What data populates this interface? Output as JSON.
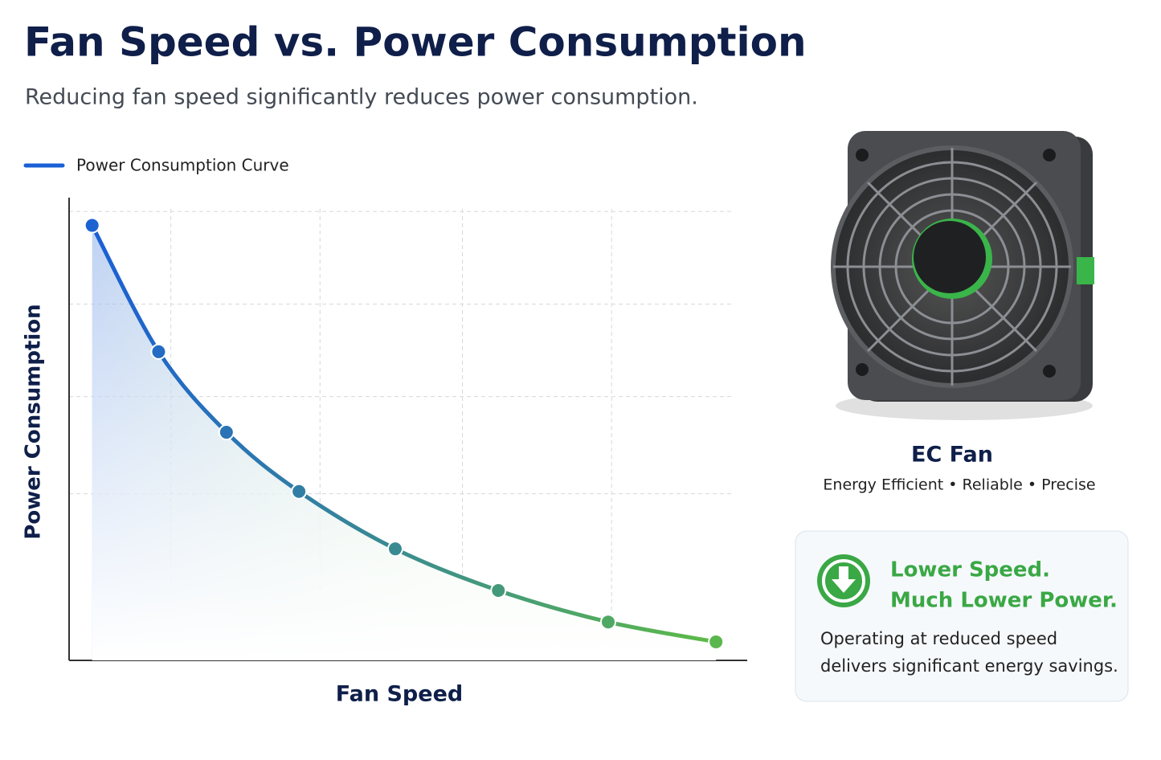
{
  "chart_data": {
    "type": "line",
    "title": "Fan Speed vs. Power Consumption",
    "subtitle": "Reducing fan speed significantly reduces power consumption.",
    "x_label": "Fan Speed",
    "y_label": "Power Consumption",
    "legend": "top-left",
    "grid": true,
    "xlim": [
      0,
      100
    ],
    "ylim": [
      0,
      100
    ],
    "xticks": [
      15,
      37,
      58,
      80
    ],
    "yticks": [
      36,
      57,
      77,
      97
    ],
    "x": [
      3.4,
      13.2,
      23.2,
      33.9,
      48.1,
      63.3,
      79.5,
      95.4
    ],
    "series": [
      {
        "name": "Power Consumption Curve",
        "colors": [
          "#1a5fd6",
          "#5dbb46"
        ],
        "values": [
          94,
          66.7,
          49.3,
          36.5,
          24.1,
          15.1,
          8.3,
          4.0
        ]
      }
    ]
  },
  "product": {
    "name": "EC Fan",
    "tagline": "Energy Efficient • Reliable • Precise"
  },
  "callout": {
    "title": [
      "Lower Speed.",
      "Much Lower Power."
    ],
    "body": [
      "Operating at reduced speed",
      "delivers significant energy savings."
    ]
  }
}
